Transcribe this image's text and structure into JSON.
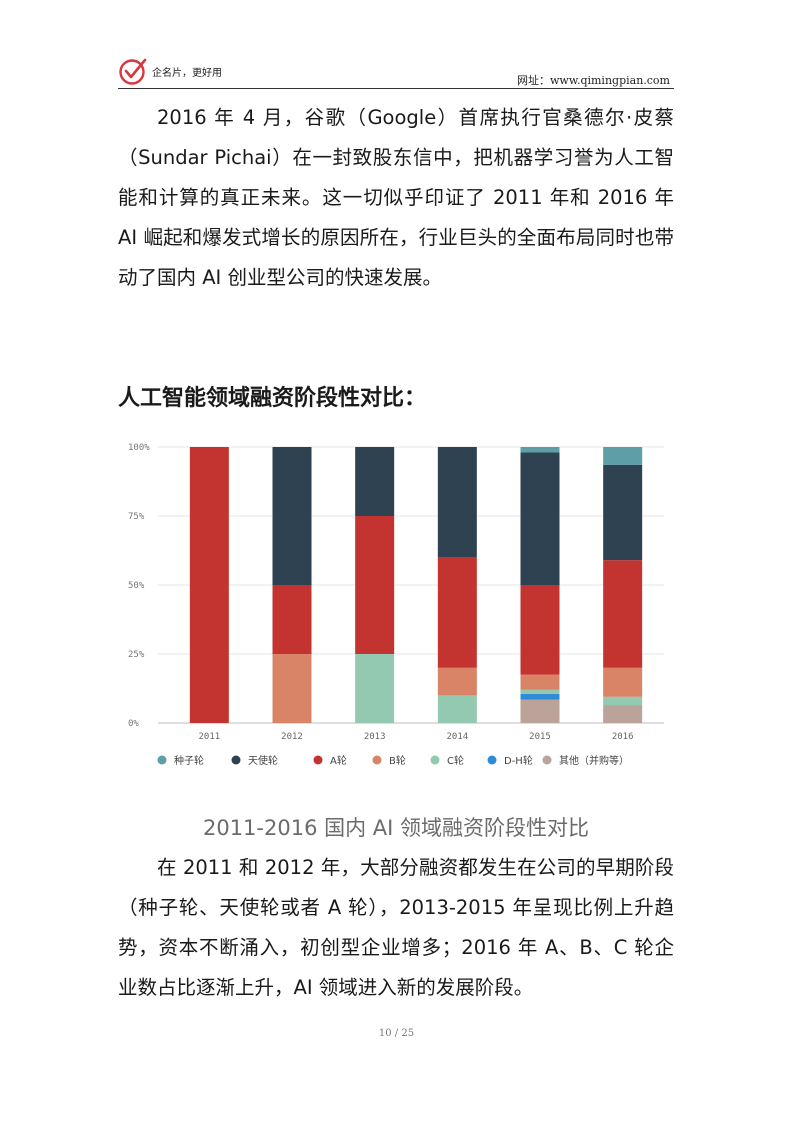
{
  "header": {
    "logo_text": "企名片，更好用",
    "url_text": "网址：www.qimingpian.com"
  },
  "paragraph1": "2016 年 4 月，谷歌（Google）首席执行官桑德尔·皮蔡（Sundar Pichai）在一封致股东信中，把机器学习誉为人工智能和计算的真正未来。这一切似乎印证了 2011 年和 2016 年 AI 崛起和爆发式增长的原因所在，行业巨头的全面布局同时也带动了国内 AI 创业型公司的快速发展。",
  "section_title": "人工智能领域融资阶段性对比：",
  "caption": "2011-2016 国内 AI 领域融资阶段性对比",
  "paragraph2": "在 2011 和 2012 年，大部分融资都发生在公司的早期阶段（种子轮、天使轮或者 A 轮），2013-2015 年呈现比例上升趋势，资本不断涌入，初创型企业增多；2016 年 A、B、C 轮企业数占比逐渐上升，AI 领域进入新的发展阶段。",
  "footer": {
    "page": "10 / 25"
  },
  "colors": {
    "accent": "#d9363e"
  },
  "chart_data": {
    "type": "bar",
    "stacked": true,
    "categories": [
      "2011",
      "2012",
      "2013",
      "2014",
      "2015",
      "2016"
    ],
    "yticks": [
      "0%",
      "25%",
      "50%",
      "75%",
      "100%"
    ],
    "ylim": [
      0,
      100
    ],
    "legend_position": "bottom",
    "grid": true,
    "series": [
      {
        "name": "其他（并购等）",
        "color": "#bba39a",
        "values": [
          0,
          0,
          0,
          0,
          8.5,
          6.5
        ]
      },
      {
        "name": "D-H轮",
        "color": "#2e8bd6",
        "values": [
          0,
          0,
          0,
          0,
          2,
          0
        ]
      },
      {
        "name": "C轮",
        "color": "#93c9b1",
        "values": [
          0,
          0,
          25,
          10,
          1.5,
          3
        ]
      },
      {
        "name": "B轮",
        "color": "#d98467",
        "values": [
          0,
          25,
          0,
          10,
          5.5,
          10.5
        ]
      },
      {
        "name": "A轮",
        "color": "#c33431",
        "values": [
          100,
          25,
          50,
          40,
          32.5,
          39
        ]
      },
      {
        "name": "天使轮",
        "color": "#2f4252",
        "values": [
          0,
          50,
          25,
          40,
          48,
          34.5
        ]
      },
      {
        "name": "种子轮",
        "color": "#5e9ea6",
        "values": [
          0,
          0,
          0,
          0,
          2,
          6.5
        ]
      }
    ],
    "legend_order": [
      "种子轮",
      "天使轮",
      "A轮",
      "B轮",
      "C轮",
      "D-H轮",
      "其他（并购等）"
    ]
  }
}
